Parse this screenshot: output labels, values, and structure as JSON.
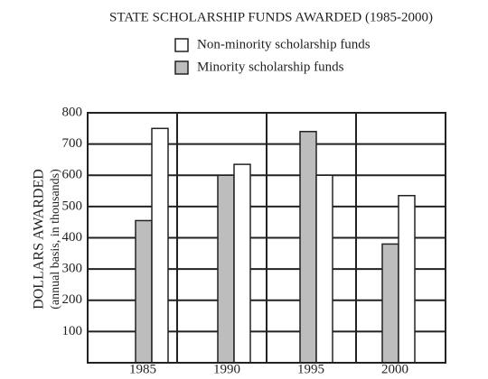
{
  "chart_data": {
    "type": "bar",
    "title": "STATE SCHOLARSHIP FUNDS AWARDED (1985-2000)",
    "y_label": "DOLLARS AWARDED",
    "y_label_sub": "(annual basis, in thousands)",
    "categories": [
      "1985",
      "1990",
      "1995",
      "2000"
    ],
    "series": [
      {
        "name": "Non-minority scholarship funds",
        "color": "#ffffff",
        "values": [
          750,
          635,
          600,
          535
        ]
      },
      {
        "name": "Minority scholarship funds",
        "color": "#bdbdbd",
        "values": [
          455,
          600,
          740,
          380
        ]
      }
    ],
    "ylim": [
      0,
      800
    ],
    "yticks": [
      100,
      200,
      300,
      400,
      500,
      600,
      700,
      800
    ],
    "grid": true
  }
}
